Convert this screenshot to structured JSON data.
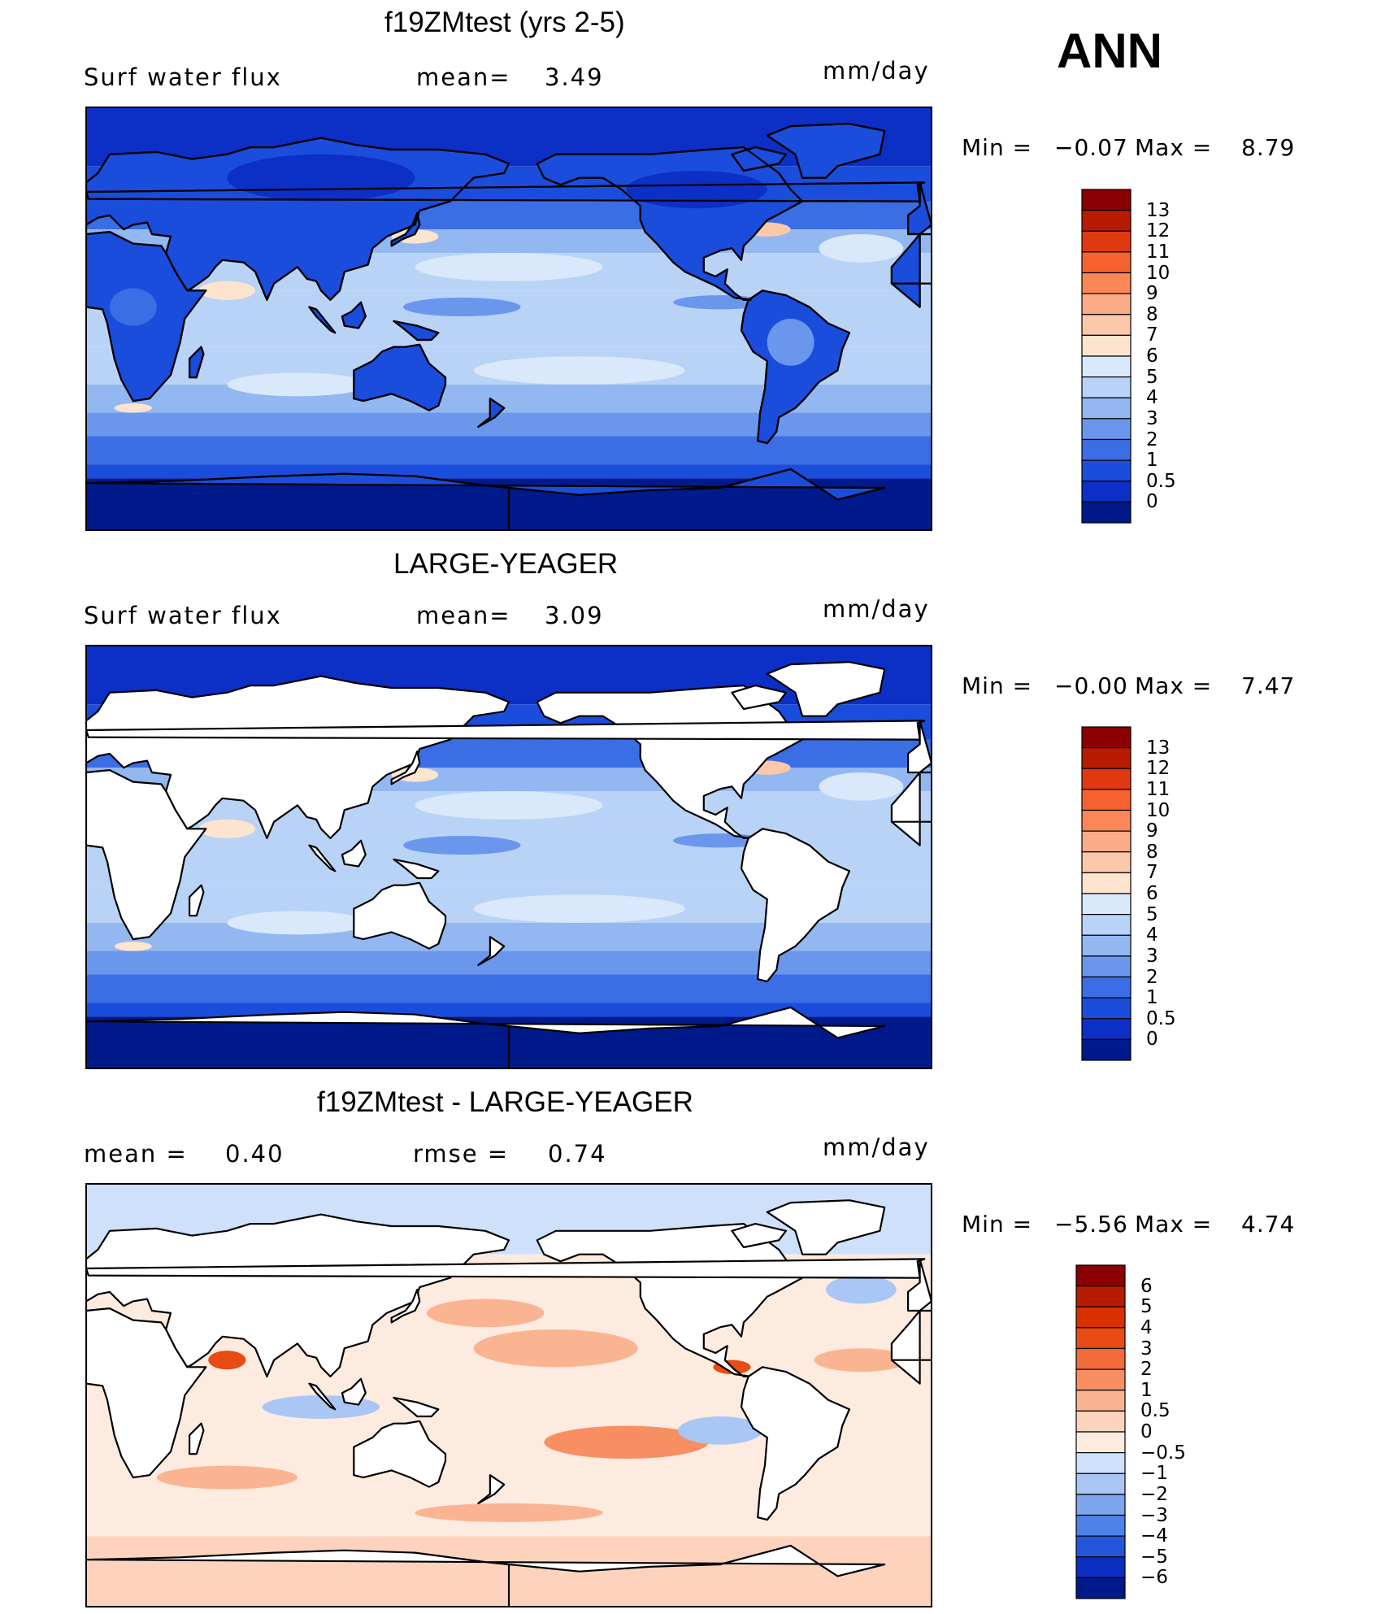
{
  "season": "ANN",
  "panels": [
    {
      "title": "f19ZMtest (yrs 2-5)",
      "left_label": "Surf  water  flux",
      "mid_label": "mean=",
      "mid_value": "3.49",
      "units": "mm/day",
      "min_label": "Min  =",
      "min_value": "−0.07",
      "max_label": "Max  =",
      "max_value": "8.79",
      "land": "filled",
      "colorbar_levels": [
        "13",
        "12",
        "11",
        "10",
        "9",
        "8",
        "7",
        "6",
        "5",
        "4",
        "3",
        "2",
        "1",
        "0.5",
        "0"
      ],
      "colorbar_colors": [
        "#8b0000",
        "#b81c00",
        "#e0390f",
        "#f5622f",
        "#fb8657",
        "#fbac86",
        "#fcc8aa",
        "#fde4cf",
        "#d9e8fa",
        "#b9d3f7",
        "#93b7f1",
        "#6a97ec",
        "#3b6de4",
        "#1b4ddc",
        "#0c2fc6",
        "#001a8c"
      ]
    },
    {
      "title": "LARGE-YEAGER",
      "left_label": "Surf  water  flux",
      "mid_label": "mean=",
      "mid_value": "3.09",
      "units": "mm/day",
      "min_label": "Min  =",
      "min_value": "−0.00",
      "max_label": "Max  =",
      "max_value": "7.47",
      "land": "masked",
      "colorbar_levels": [
        "13",
        "12",
        "11",
        "10",
        "9",
        "8",
        "7",
        "6",
        "5",
        "4",
        "3",
        "2",
        "1",
        "0.5",
        "0"
      ],
      "colorbar_colors": [
        "#8b0000",
        "#b81c00",
        "#e0390f",
        "#f5622f",
        "#fb8657",
        "#fbac86",
        "#fcc8aa",
        "#fde4cf",
        "#d9e8fa",
        "#b9d3f7",
        "#93b7f1",
        "#6a97ec",
        "#3b6de4",
        "#1b4ddc",
        "#0c2fc6",
        "#001a8c"
      ]
    },
    {
      "title": "f19ZMtest - LARGE-YEAGER",
      "left_label": "mean  =",
      "left_value": "0.40",
      "mid_label": "rmse  =",
      "mid_value": "0.74",
      "units": "mm/day",
      "min_label": "Min  =",
      "min_value": "−5.56",
      "max_label": "Max  =",
      "max_value": "4.74",
      "land": "masked",
      "colorbar_levels": [
        "6",
        "5",
        "4",
        "3",
        "2",
        "1",
        "0.5",
        "0",
        "−0.5",
        "−1",
        "−2",
        "−3",
        "−4",
        "−5",
        "−6"
      ],
      "colorbar_colors": [
        "#8b0000",
        "#b81c00",
        "#d93000",
        "#e84b14",
        "#f26b3a",
        "#f78f62",
        "#fbb492",
        "#fdd3be",
        "#fdebe0",
        "#cfe0fa",
        "#a9c6f5",
        "#7da6ef",
        "#4f82e8",
        "#2356dd",
        "#0a2fc0",
        "#001a8c"
      ]
    }
  ]
}
